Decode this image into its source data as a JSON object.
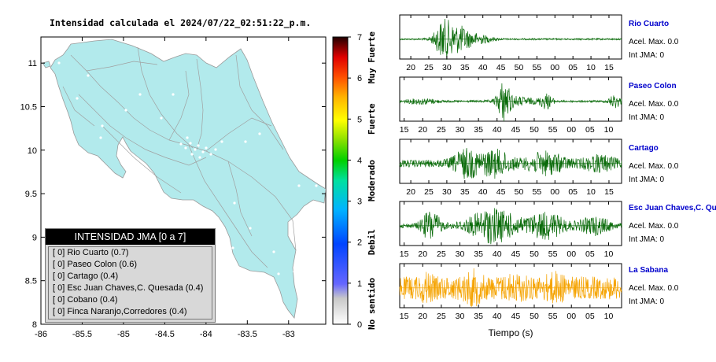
{
  "map": {
    "title": "Intensidad calculada el 2024/07/22_02:51:22_p.m.",
    "x_ticks": [
      "-86",
      "-85.5",
      "-85",
      "-84.5",
      "-84",
      "-83.5",
      "-83"
    ],
    "y_ticks": [
      "11",
      "10.5",
      "10",
      "9.5",
      "9",
      "8.5",
      "8"
    ],
    "xlim": [
      -86,
      -82.55
    ],
    "ylim": [
      8,
      11.3
    ]
  },
  "colorbar": {
    "tick_labels": [
      "0",
      "1",
      "2",
      "3",
      "4",
      "5",
      "6",
      "7"
    ],
    "category_labels": [
      "No sentido",
      "Debil",
      "Moderado",
      "Fuerte",
      "Muy Fuerte"
    ]
  },
  "legend": {
    "title": "INTENSIDAD JMA [0 a 7]",
    "rows": [
      "[ 0] Rio Cuarto (0.7)",
      "[ 0] Paseo Colon (0.6)",
      "[ 0] Cartago (0.4)",
      "[ 0] Esc Juan Chaves,C. Quesada (0.4)",
      "[ 0] Cobano (0.4)",
      "[ 0] Finca Naranjo,Corredores (0.4)"
    ]
  },
  "seismograms": {
    "xlabel": "Tiempo (s)",
    "stations": [
      {
        "name": "Rio Cuarto",
        "acel": "Acel. Max. 0.0",
        "int": "Int JMA: 0",
        "color": "#0a6b0a",
        "ticks": [
          "20",
          "25",
          "30",
          "35",
          "40",
          "45",
          "50",
          "55",
          "00",
          "05",
          "10",
          "15"
        ]
      },
      {
        "name": "Paseo Colon",
        "acel": "Acel. Max. 0.0",
        "int": "Int JMA: 0",
        "color": "#0a6b0a",
        "ticks": [
          "15",
          "20",
          "25",
          "30",
          "35",
          "40",
          "45",
          "50",
          "55",
          "00",
          "05",
          "10"
        ]
      },
      {
        "name": "Cartago",
        "acel": "Acel. Max. 0.0",
        "int": "Int JMA: 0",
        "color": "#0a6b0a",
        "ticks": [
          "20",
          "25",
          "30",
          "35",
          "40",
          "45",
          "50",
          "55",
          "00",
          "05",
          "10",
          "15"
        ]
      },
      {
        "name": "Esc Juan Chaves,C. Qu",
        "acel": "Acel. Max. 0.0",
        "int": "Int JMA: 0",
        "color": "#0a6b0a",
        "ticks": [
          "15",
          "20",
          "25",
          "30",
          "35",
          "40",
          "45",
          "50",
          "55",
          "00",
          "05",
          "10"
        ]
      },
      {
        "name": "La Sabana",
        "acel": "Acel. Max. 0.0",
        "int": "Int JMA: 0",
        "color": "#f5a300",
        "ticks": [
          "15",
          "20",
          "25",
          "30",
          "35",
          "40",
          "45",
          "50",
          "55",
          "00",
          "05",
          "10"
        ]
      }
    ]
  },
  "chart_data": [
    {
      "type": "heatmap",
      "title": "Intensidad calculada el 2024/07/22_02:51:22_p.m.",
      "xlim": [
        -86,
        -82.55
      ],
      "ylim": [
        8,
        11.3
      ],
      "colorbar_range": [
        0,
        7
      ],
      "legend_position": "bottom-left"
    },
    {
      "type": "line",
      "xlabel": "Tiempo (s)",
      "series": [
        {
          "name": "Rio Cuarto"
        },
        {
          "name": "Paseo Colon"
        },
        {
          "name": "Cartago"
        },
        {
          "name": "Esc Juan Chaves,C. Qu"
        },
        {
          "name": "La Sabana"
        }
      ]
    }
  ]
}
